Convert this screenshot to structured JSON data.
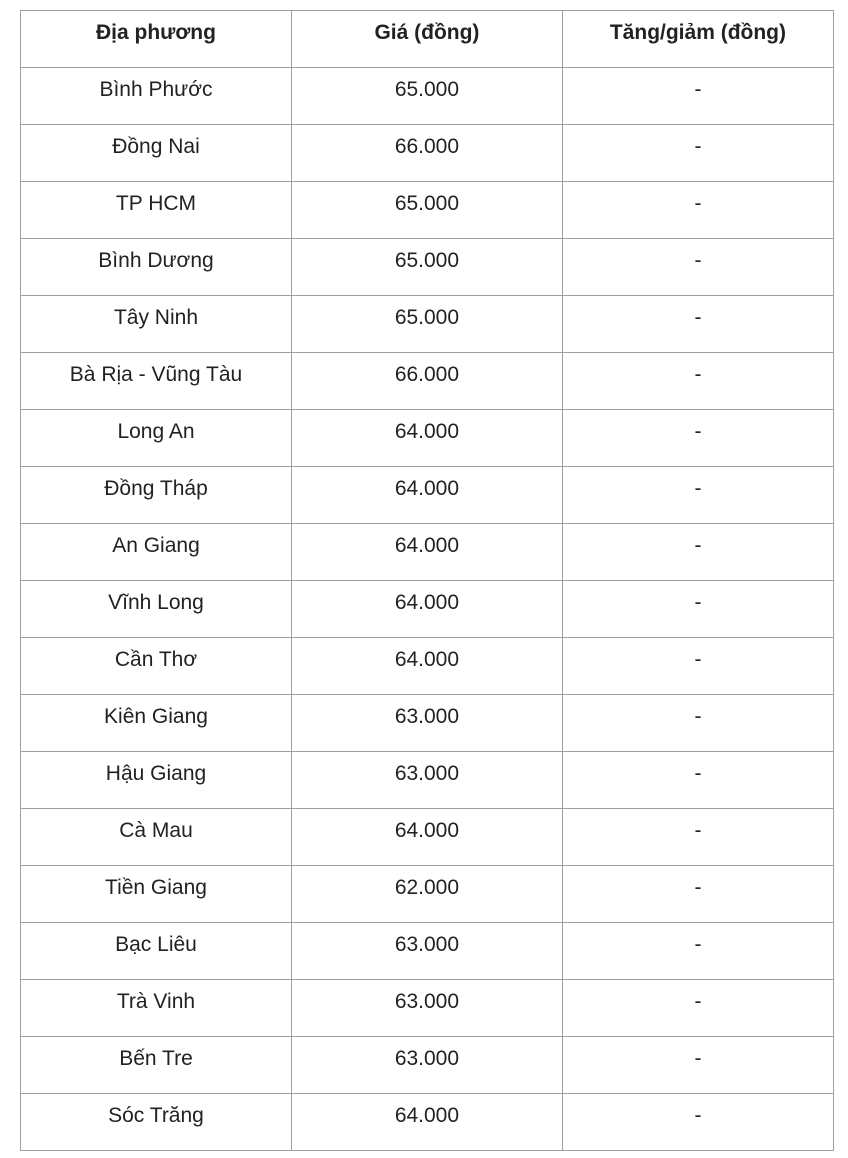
{
  "table": {
    "headers": [
      "Địa phương",
      "Giá (đồng)",
      "Tăng/giảm (đồng)"
    ],
    "rows": [
      [
        "Bình Phước",
        "65.000",
        "-"
      ],
      [
        "Đồng Nai",
        "66.000",
        "-"
      ],
      [
        "TP HCM",
        "65.000",
        "-"
      ],
      [
        "Bình Dương",
        "65.000",
        "-"
      ],
      [
        "Tây Ninh",
        "65.000",
        "-"
      ],
      [
        "Bà Rịa - Vũng Tàu",
        "66.000",
        "-"
      ],
      [
        "Long An",
        "64.000",
        "-"
      ],
      [
        "Đồng Tháp",
        "64.000",
        "-"
      ],
      [
        "An Giang",
        "64.000",
        "-"
      ],
      [
        "Vĩnh Long",
        "64.000",
        "-"
      ],
      [
        "Cần Thơ",
        "64.000",
        "-"
      ],
      [
        "Kiên Giang",
        "63.000",
        "-"
      ],
      [
        "Hậu Giang",
        "63.000",
        "-"
      ],
      [
        "Cà Mau",
        "64.000",
        "-"
      ],
      [
        "Tiền Giang",
        "62.000",
        "-"
      ],
      [
        "Bạc Liêu",
        "63.000",
        "-"
      ],
      [
        "Trà Vinh",
        "63.000",
        "-"
      ],
      [
        "Bến Tre",
        "63.000",
        "-"
      ],
      [
        "Sóc Trăng",
        "64.000",
        "-"
      ]
    ]
  }
}
